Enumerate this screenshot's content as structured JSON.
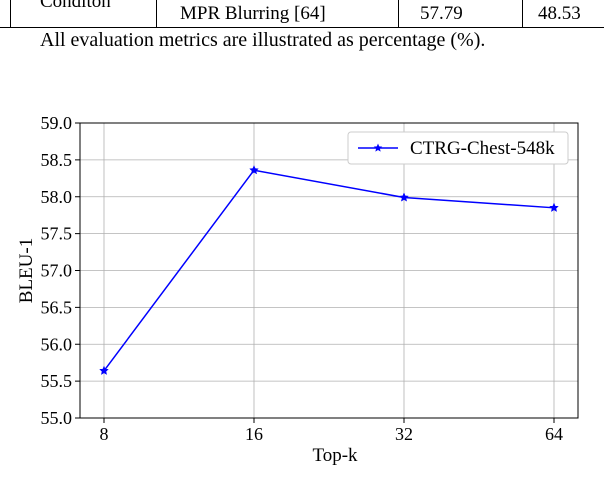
{
  "table_fragment": {
    "row_header": "Conditon",
    "method": "MPR Blurring [64]",
    "value_1": "57.79",
    "value_2": "48.53"
  },
  "note": "All evaluation metrics are illustrated as percentage (%).",
  "chart_data": {
    "type": "line",
    "xlabel": "Top-k",
    "ylabel": "BLEU-1",
    "categories": [
      "8",
      "16",
      "32",
      "64"
    ],
    "series": [
      {
        "name": "CTRG-Chest-548k",
        "values": [
          55.64,
          58.36,
          57.99,
          57.85
        ],
        "color": "#0000ff",
        "marker": "star"
      }
    ],
    "ylim": [
      55.0,
      59.0
    ],
    "yticks": [
      "55.0",
      "55.5",
      "56.0",
      "56.5",
      "57.0",
      "57.5",
      "58.0",
      "58.5",
      "59.0"
    ],
    "grid": true,
    "legend_position": "top-right"
  }
}
